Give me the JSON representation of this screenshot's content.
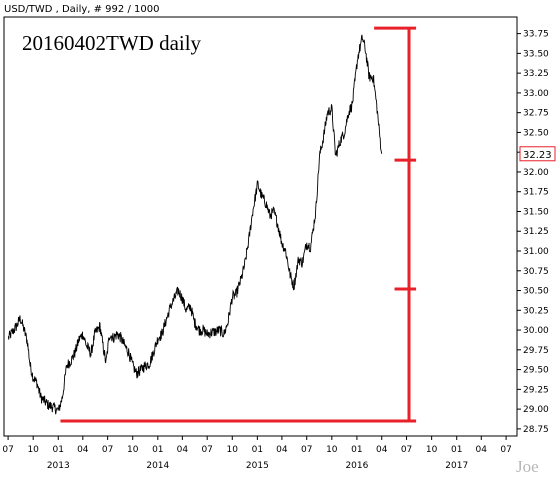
{
  "header": {
    "text": "USD/TWD , Daily, # 992 / 1000"
  },
  "title": "20160402TWD daily",
  "watermark": "Joe",
  "colors": {
    "price": "#000000",
    "annotation": "#e8202a",
    "axis": "#000000",
    "background": "#ffffff"
  },
  "chart_data": {
    "type": "line",
    "series": [
      {
        "points": [
          [
            "2012-07-02",
            29.9
          ],
          [
            "2012-07-16",
            29.97
          ],
          [
            "2012-08-01",
            30.05
          ],
          [
            "2012-08-15",
            30.15
          ],
          [
            "2012-08-27",
            30.02
          ],
          [
            "2012-09-10",
            29.85
          ],
          [
            "2012-09-20",
            29.55
          ],
          [
            "2012-10-01",
            29.4
          ],
          [
            "2012-10-15",
            29.33
          ],
          [
            "2012-10-29",
            29.15
          ],
          [
            "2012-11-12",
            29.1
          ],
          [
            "2012-11-26",
            29.05
          ],
          [
            "2012-12-10",
            29.03
          ],
          [
            "2012-12-24",
            29.0
          ],
          [
            "2013-01-02",
            28.98
          ],
          [
            "2013-01-16",
            29.15
          ],
          [
            "2013-02-01",
            29.55
          ],
          [
            "2013-02-18",
            29.62
          ],
          [
            "2013-03-04",
            29.72
          ],
          [
            "2013-03-18",
            29.88
          ],
          [
            "2013-04-01",
            29.95
          ],
          [
            "2013-04-15",
            29.8
          ],
          [
            "2013-05-01",
            29.7
          ],
          [
            "2013-05-15",
            29.95
          ],
          [
            "2013-06-03",
            30.05
          ],
          [
            "2013-06-14",
            29.8
          ],
          [
            "2013-06-25",
            29.58
          ],
          [
            "2013-07-08",
            29.95
          ],
          [
            "2013-07-22",
            29.9
          ],
          [
            "2013-08-05",
            29.95
          ],
          [
            "2013-08-19",
            29.9
          ],
          [
            "2013-09-02",
            29.8
          ],
          [
            "2013-09-16",
            29.72
          ],
          [
            "2013-10-01",
            29.55
          ],
          [
            "2013-10-15",
            29.45
          ],
          [
            "2013-11-01",
            29.5
          ],
          [
            "2013-11-15",
            29.55
          ],
          [
            "2013-12-02",
            29.58
          ],
          [
            "2013-12-16",
            29.72
          ],
          [
            "2014-01-02",
            29.9
          ],
          [
            "2014-01-16",
            29.95
          ],
          [
            "2014-02-03",
            30.15
          ],
          [
            "2014-02-17",
            30.3
          ],
          [
            "2014-03-03",
            30.4
          ],
          [
            "2014-03-17",
            30.5
          ],
          [
            "2014-04-01",
            30.4
          ],
          [
            "2014-04-15",
            30.25
          ],
          [
            "2014-05-01",
            30.3
          ],
          [
            "2014-05-15",
            30.1
          ],
          [
            "2014-06-02",
            30.0
          ],
          [
            "2014-06-16",
            30.0
          ],
          [
            "2014-07-01",
            29.95
          ],
          [
            "2014-07-15",
            29.97
          ],
          [
            "2014-08-01",
            29.98
          ],
          [
            "2014-08-15",
            30.0
          ],
          [
            "2014-09-01",
            29.95
          ],
          [
            "2014-09-15",
            30.1
          ],
          [
            "2014-10-01",
            30.42
          ],
          [
            "2014-10-15",
            30.45
          ],
          [
            "2014-11-03",
            30.65
          ],
          [
            "2014-11-17",
            30.85
          ],
          [
            "2014-12-01",
            31.15
          ],
          [
            "2014-12-15",
            31.5
          ],
          [
            "2015-01-02",
            31.85
          ],
          [
            "2015-01-16",
            31.7
          ],
          [
            "2015-02-02",
            31.6
          ],
          [
            "2015-02-16",
            31.45
          ],
          [
            "2015-03-02",
            31.5
          ],
          [
            "2015-03-16",
            31.35
          ],
          [
            "2015-04-01",
            31.1
          ],
          [
            "2015-04-15",
            31.0
          ],
          [
            "2015-05-01",
            30.7
          ],
          [
            "2015-05-15",
            30.55
          ],
          [
            "2015-06-01",
            30.9
          ],
          [
            "2015-06-15",
            30.85
          ],
          [
            "2015-07-01",
            31.1
          ],
          [
            "2015-07-15",
            31.05
          ],
          [
            "2015-08-03",
            31.5
          ],
          [
            "2015-08-17",
            32.2
          ],
          [
            "2015-09-01",
            32.45
          ],
          [
            "2015-09-15",
            32.75
          ],
          [
            "2015-10-01",
            32.8
          ],
          [
            "2015-10-15",
            32.2
          ],
          [
            "2015-11-02",
            32.4
          ],
          [
            "2015-11-16",
            32.5
          ],
          [
            "2015-12-01",
            32.75
          ],
          [
            "2015-12-15",
            32.85
          ],
          [
            "2016-01-04",
            33.45
          ],
          [
            "2016-01-21",
            33.7
          ],
          [
            "2016-02-01",
            33.55
          ],
          [
            "2016-02-15",
            33.2
          ],
          [
            "2016-03-01",
            33.2
          ],
          [
            "2016-03-15",
            32.8
          ],
          [
            "2016-03-25",
            32.45
          ],
          [
            "2016-04-01",
            32.23
          ]
        ]
      }
    ],
    "last_value": "32.23",
    "y_ticks": [
      "33.75",
      "33.50",
      "33.25",
      "33.00",
      "32.75",
      "32.50",
      "32.25",
      "32.00",
      "31.75",
      "31.50",
      "31.25",
      "31.00",
      "30.75",
      "30.50",
      "30.25",
      "30.00",
      "29.75",
      "29.50",
      "29.25",
      "29.00",
      "28.75"
    ],
    "x_ticks": [
      "07",
      "10",
      "01",
      "04",
      "07",
      "10",
      "01",
      "04",
      "07",
      "10",
      "01",
      "04",
      "07",
      "10",
      "01",
      "04",
      "07",
      "10",
      "01",
      "04",
      "07"
    ],
    "x_year_labels": [
      "2013",
      "2014",
      "2015",
      "2016",
      "2017"
    ],
    "ylim": [
      28.66,
      33.96
    ],
    "xlim": [
      "2012-06-16",
      "2017-08-10"
    ],
    "annotations": {
      "vertical_line": {
        "date": "2016-07-10",
        "from": 28.85,
        "to": 33.82
      },
      "top_cap": {
        "from_date": "2016-03-04",
        "to_date": "2016-08-05",
        "value": 33.82
      },
      "bottom_line": {
        "from_date": "2013-01-09",
        "to_date": "2016-08-05",
        "value": 28.85
      },
      "ticks": [
        {
          "from_date": "2016-05-18",
          "to_date": "2016-08-05",
          "value": 32.15
        },
        {
          "from_date": "2016-05-18",
          "to_date": "2016-08-05",
          "value": 30.52
        }
      ]
    }
  }
}
